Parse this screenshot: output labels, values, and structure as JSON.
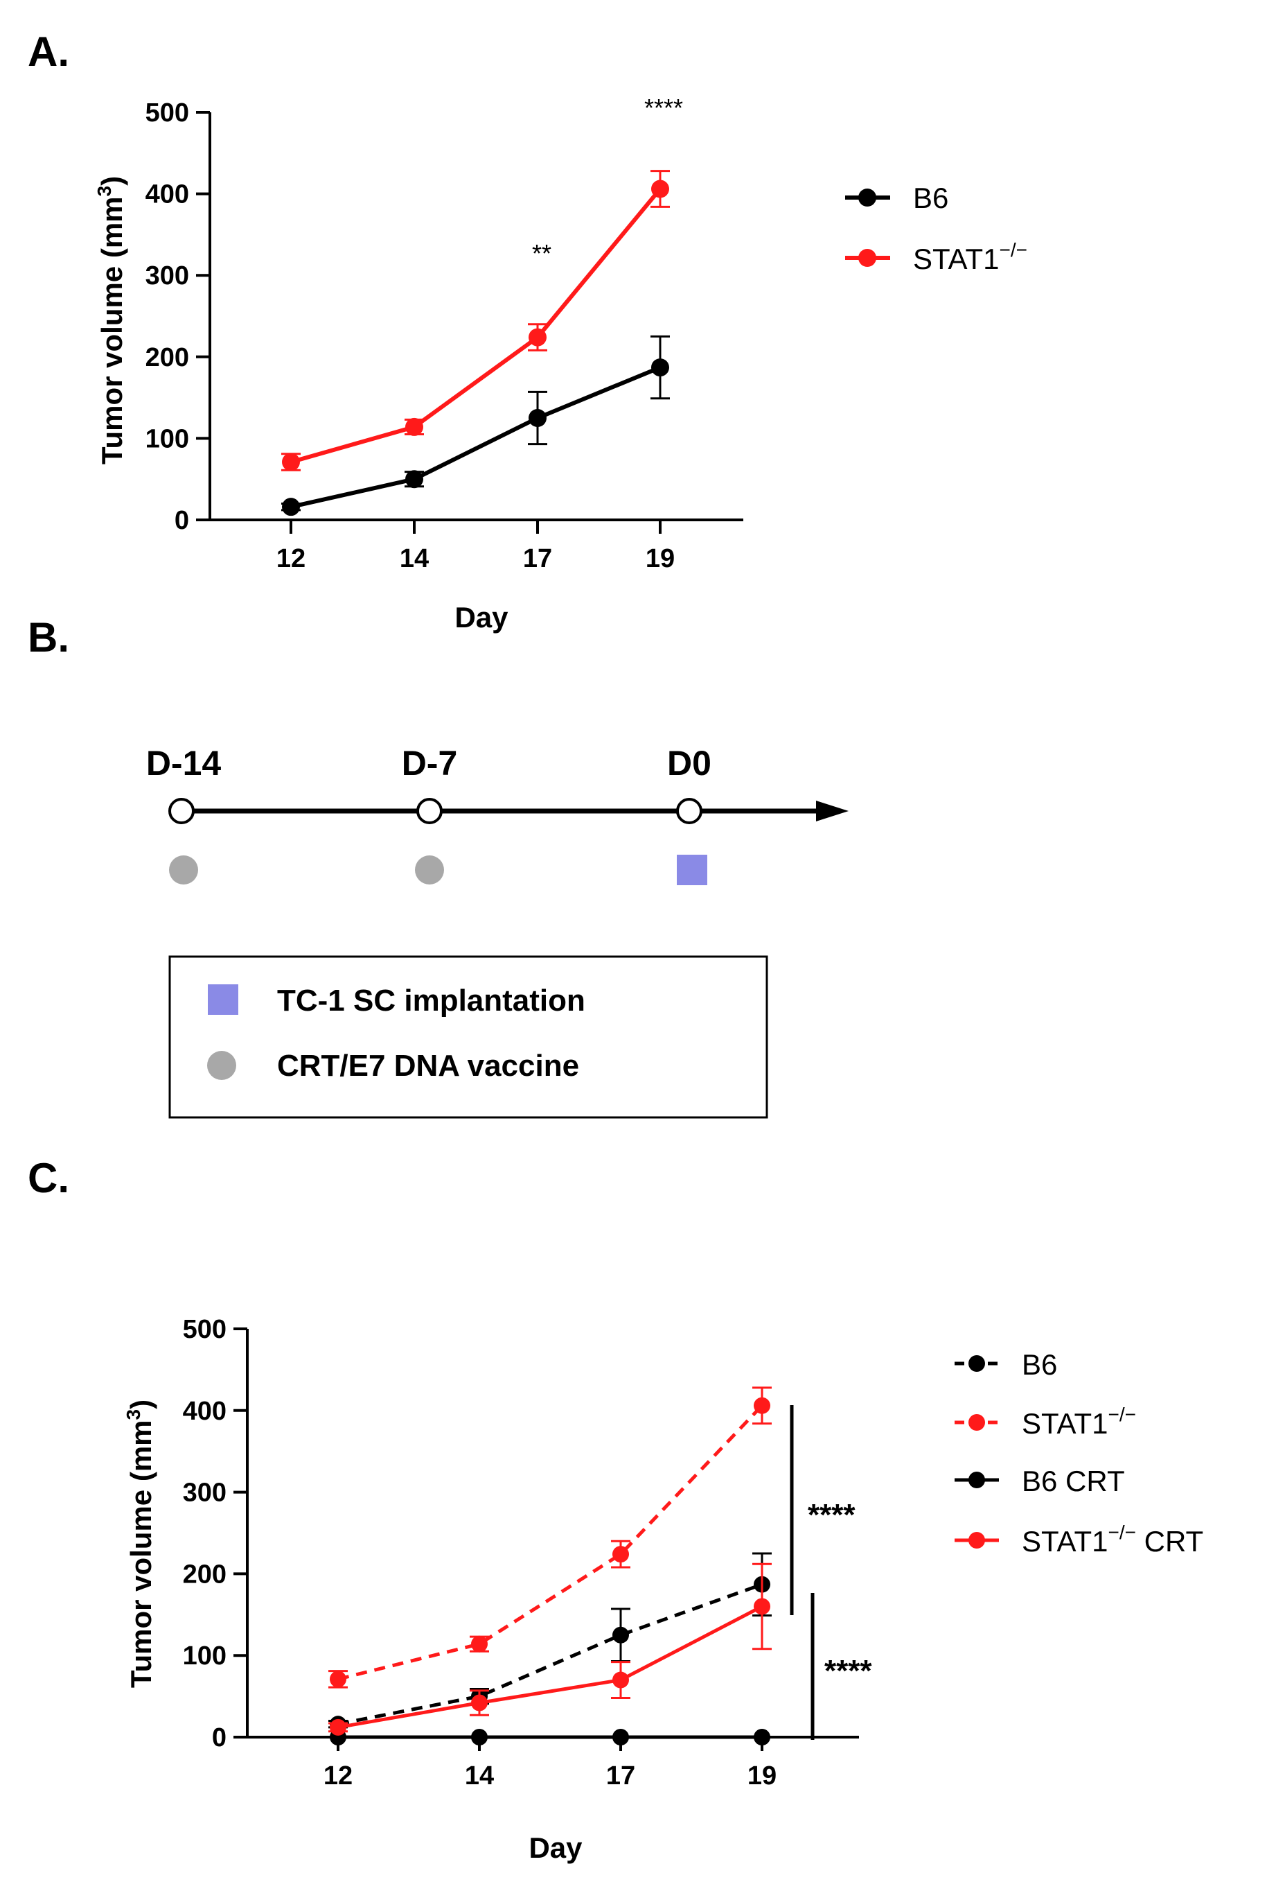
{
  "panel_labels": {
    "a": "A.",
    "b": "B.",
    "c": "C."
  },
  "colors": {
    "black": "#000000",
    "red": "#ff1a1a",
    "gray": "#a8a8a8",
    "blue": "#8a8ae6"
  },
  "chart_data": [
    {
      "type": "line",
      "panel": "A",
      "title": "",
      "xlabel": "Day",
      "ylabel": "Tumor volume (mm³)",
      "x": [
        12,
        14,
        17,
        19
      ],
      "categories": [
        "12",
        "14",
        "17",
        "19"
      ],
      "ylim": [
        0,
        500
      ],
      "yticks": [
        0,
        100,
        200,
        300,
        400,
        500
      ],
      "grid": false,
      "legend_position": "right",
      "series": [
        {
          "name": "B6",
          "color": "#000000",
          "style": "solid",
          "values": [
            16,
            50,
            125,
            187
          ],
          "errors": [
            4,
            9,
            32,
            38
          ]
        },
        {
          "name": "STAT1−/−",
          "color": "#ff1a1a",
          "style": "solid",
          "values": [
            71,
            114,
            224,
            406
          ],
          "errors": [
            10,
            9,
            16,
            22
          ]
        }
      ],
      "annotations": [
        {
          "x": 17,
          "text": "**"
        },
        {
          "x": 19,
          "text": "****"
        }
      ]
    },
    {
      "type": "line",
      "panel": "C",
      "title": "",
      "xlabel": "Day",
      "ylabel": "Tumor volume (mm³)",
      "x": [
        12,
        14,
        17,
        19
      ],
      "categories": [
        "12",
        "14",
        "17",
        "19"
      ],
      "ylim": [
        0,
        500
      ],
      "yticks": [
        0,
        100,
        200,
        300,
        400,
        500
      ],
      "grid": false,
      "legend_position": "right",
      "series": [
        {
          "name": "B6",
          "color": "#000000",
          "style": "dashed",
          "values": [
            16,
            50,
            125,
            187
          ],
          "errors": [
            4,
            9,
            32,
            38
          ]
        },
        {
          "name": "STAT1−/−",
          "color": "#ff1a1a",
          "style": "dashed",
          "values": [
            71,
            114,
            224,
            406
          ],
          "errors": [
            10,
            9,
            16,
            22
          ]
        },
        {
          "name": "B6 CRT",
          "color": "#000000",
          "style": "solid",
          "values": [
            0,
            0,
            0,
            0
          ],
          "errors": [
            0,
            0,
            0,
            0
          ]
        },
        {
          "name": "STAT1−/− CRT",
          "color": "#ff1a1a",
          "style": "solid",
          "values": [
            12,
            42,
            70,
            160
          ],
          "errors": [
            5,
            15,
            22,
            52
          ]
        }
      ],
      "annotations": [
        {
          "text": "****",
          "between": [
            "STAT1−/−",
            "STAT1−/− CRT"
          ]
        },
        {
          "text": "****",
          "between": [
            "B6",
            "B6 CRT"
          ]
        }
      ]
    }
  ],
  "legend_a": [
    {
      "label": "B6",
      "sup": ""
    },
    {
      "label": "STAT1",
      "sup": "−/−"
    }
  ],
  "legend_c": [
    {
      "label": "B6",
      "sup": "",
      "suffix": ""
    },
    {
      "label": "STAT1",
      "sup": "−/−",
      "suffix": ""
    },
    {
      "label": "B6 CRT",
      "sup": "",
      "suffix": ""
    },
    {
      "label": "STAT1",
      "sup": "−/−",
      "suffix": " CRT"
    }
  ],
  "axis": {
    "ylabel_main": "Tumor volume (mm",
    "ylabel_sup": "3",
    "ylabel_end": ")",
    "xlabel": "Day"
  },
  "sig_a": {
    "day17": "**",
    "day19": "****"
  },
  "sig_c": {
    "upper": "****",
    "lower": "****"
  },
  "timeline": {
    "points": [
      "D-14",
      "D-7",
      "D0"
    ],
    "legend": {
      "implant": "TC-1 SC implantation",
      "vaccine": "CRT/E7 DNA vaccine"
    }
  }
}
